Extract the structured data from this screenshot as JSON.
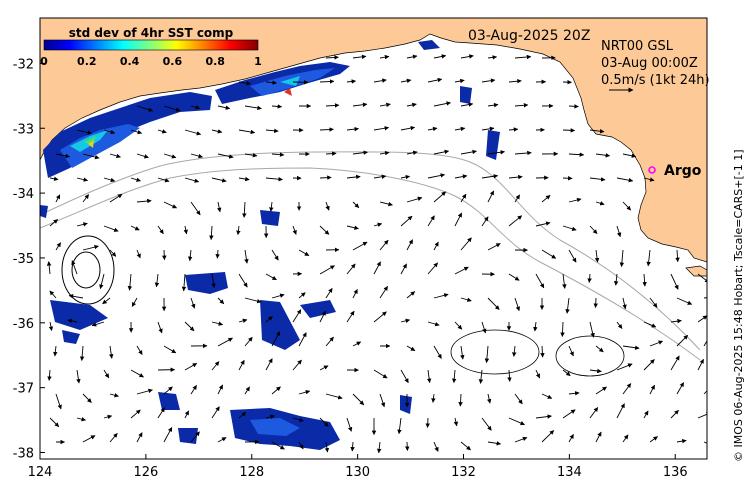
{
  "map": {
    "date_label": "03-Aug-2025 20Z",
    "product_lines": [
      "NRT00 GSL",
      "03-Aug 00:00Z",
      "0.5m/s (1kt 24h)"
    ],
    "credit": "© IMOS 06-Aug-2025 15:48 Hobart; Tscale=CARS+[-1 1]",
    "lon_ticks": [
      "124",
      "126",
      "128",
      "130",
      "132",
      "134",
      "136"
    ],
    "lat_ticks": [
      "-32",
      "-33",
      "-34",
      "-35",
      "-36",
      "-37",
      "-38"
    ],
    "lon_values": [
      124,
      126,
      128,
      130,
      132,
      134,
      136
    ],
    "lat_values": [
      -32,
      -33,
      -34,
      -35,
      -36,
      -37,
      -38
    ],
    "extent": {
      "lon_min": 124,
      "lon_max": 136.6,
      "lat_min": -38.1,
      "lat_max": -31.3
    },
    "colors": {
      "land": "#fdc997",
      "vector": "#000000",
      "contour": "#a8a8a8",
      "argo": "#ff00ff"
    },
    "argo": {
      "label": "Argo",
      "lon": 135.4,
      "lat": -33.6
    }
  },
  "colorbar": {
    "title": "std dev of 4hr SST comp",
    "ticks": [
      "0",
      "0.2",
      "0.4",
      "0.6",
      "0.8",
      "1"
    ],
    "range": [
      0,
      1
    ],
    "colormap": "jet"
  }
}
